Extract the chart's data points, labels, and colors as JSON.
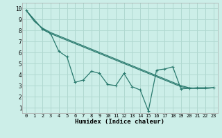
{
  "background_color": "#cceee8",
  "grid_color": "#b0d8d0",
  "line_color": "#2a7a6e",
  "xlabel": "Humidex (Indice chaleur)",
  "xlim": [
    -0.5,
    23.5
  ],
  "ylim": [
    0.5,
    10.5
  ],
  "xticks": [
    0,
    1,
    2,
    3,
    4,
    5,
    6,
    7,
    8,
    9,
    10,
    11,
    12,
    13,
    14,
    15,
    16,
    17,
    18,
    19,
    20,
    21,
    22,
    23
  ],
  "yticks": [
    1,
    2,
    3,
    4,
    5,
    6,
    7,
    8,
    9,
    10
  ],
  "line1_x": [
    0,
    1,
    2,
    3,
    4,
    5,
    6,
    7,
    8,
    9,
    10,
    11,
    12,
    13,
    14,
    15,
    16,
    17,
    18,
    19,
    20,
    21,
    22,
    23
  ],
  "line1_y": [
    9.8,
    8.8,
    8.2,
    7.8,
    7.5,
    7.2,
    6.9,
    6.6,
    6.3,
    6.0,
    5.7,
    5.4,
    5.1,
    4.8,
    4.5,
    4.2,
    3.9,
    3.6,
    3.3,
    3.0,
    2.8,
    2.75,
    2.75,
    2.8
  ],
  "line2_x": [
    0,
    2,
    3,
    4,
    5,
    6,
    7,
    8,
    9,
    10,
    11,
    12,
    13,
    14,
    15,
    16,
    17,
    18,
    19,
    20,
    21,
    22,
    23
  ],
  "line2_y": [
    9.8,
    8.1,
    7.7,
    7.4,
    7.1,
    6.8,
    6.5,
    6.2,
    5.9,
    5.6,
    5.3,
    5.0,
    4.7,
    4.4,
    4.1,
    3.8,
    3.5,
    3.2,
    2.9,
    2.75,
    2.75,
    2.75,
    2.8
  ],
  "line3_x": [
    0,
    2,
    3,
    4,
    5,
    6,
    7,
    8,
    9,
    10,
    11,
    12,
    13,
    14,
    15,
    16,
    17,
    18,
    19,
    20,
    21,
    22,
    23
  ],
  "line3_y": [
    9.8,
    8.1,
    7.7,
    6.1,
    5.6,
    3.3,
    3.5,
    4.3,
    4.1,
    3.1,
    3.0,
    4.1,
    2.9,
    2.6,
    0.7,
    4.4,
    4.5,
    4.7,
    2.7,
    2.75,
    2.8,
    2.8,
    2.8
  ]
}
